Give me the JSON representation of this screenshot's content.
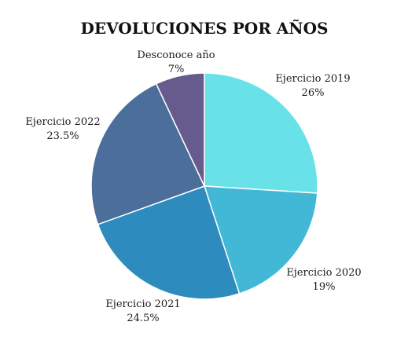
{
  "chart_data": {
    "type": "pie",
    "title": "DEVOLUCIONES POR AÑOS",
    "slices": [
      {
        "label": "Ejercicio 2019",
        "value": 26,
        "value_label": "26%",
        "color": "#68e2e8"
      },
      {
        "label": "Ejercicio 2020",
        "value": 19,
        "value_label": "19%",
        "color": "#42b8d6"
      },
      {
        "label": "Ejercicio 2021",
        "value": 24.5,
        "value_label": "24.5%",
        "color": "#2e8bbd"
      },
      {
        "label": "Ejercicio 2022",
        "value": 23.5,
        "value_label": "23.5%",
        "color": "#4b6e9a"
      },
      {
        "label": "Desconoce año",
        "value": 7,
        "value_label": "7%",
        "color": "#675b8e"
      }
    ],
    "start": "12 o'clock",
    "direction": "clockwise",
    "legend": "none"
  }
}
